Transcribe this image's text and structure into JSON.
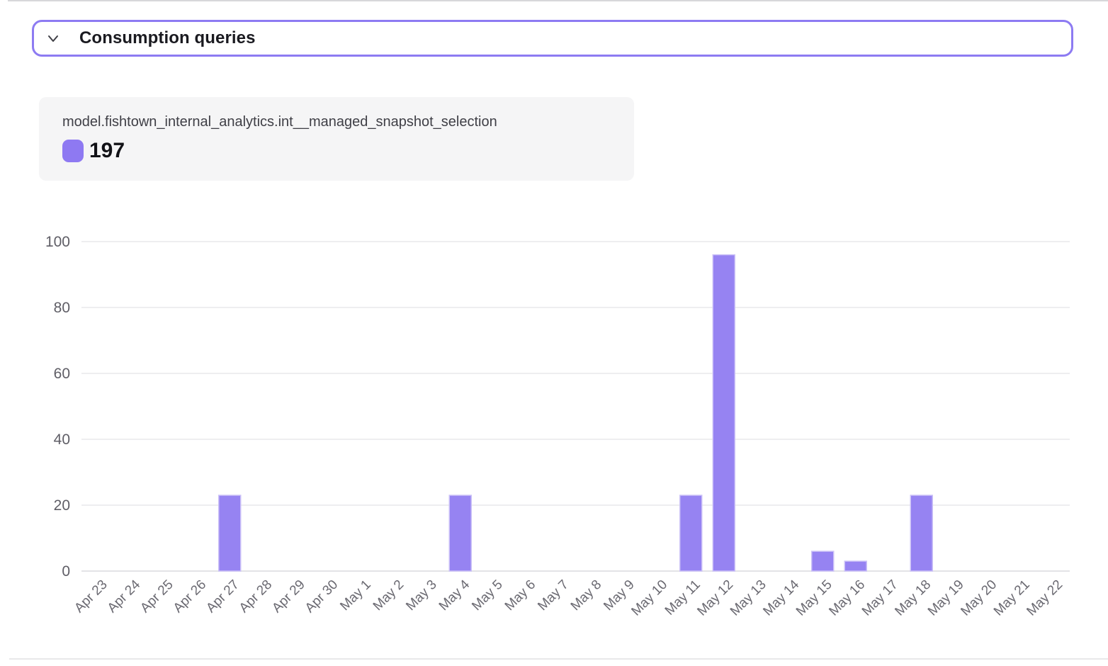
{
  "header": {
    "title": "Consumption queries",
    "collapse_icon": "chevron-down",
    "border_color": "#8d7bf2"
  },
  "tooltip": {
    "series_name": "model.fishtown_internal_analytics.int__managed_snapshot_selection",
    "value": "197",
    "swatch_color": "#8e79f2"
  },
  "chart_data": {
    "type": "bar",
    "title": "",
    "xlabel": "",
    "ylabel": "",
    "categories": [
      "Apr 23",
      "Apr 24",
      "Apr 25",
      "Apr 26",
      "Apr 27",
      "Apr 28",
      "Apr 29",
      "Apr 30",
      "May 1",
      "May 2",
      "May 3",
      "May 4",
      "May 5",
      "May 6",
      "May 7",
      "May 8",
      "May 9",
      "May 10",
      "May 11",
      "May 12",
      "May 13",
      "May 14",
      "May 15",
      "May 16",
      "May 17",
      "May 18",
      "May 19",
      "May 20",
      "May 21",
      "May 22"
    ],
    "values": [
      0,
      0,
      0,
      0,
      23,
      0,
      0,
      0,
      0,
      0,
      0,
      23,
      0,
      0,
      0,
      0,
      0,
      0,
      23,
      96,
      0,
      0,
      6,
      3,
      0,
      23,
      0,
      0,
      0,
      0
    ],
    "series_name": "model.fishtown_internal_analytics.int__managed_snapshot_selection",
    "total": 197,
    "ylim": [
      0,
      100
    ],
    "yticks": [
      0,
      20,
      40,
      60,
      80,
      100
    ],
    "grid": true,
    "legend_position": "top-left-card",
    "bar_color": "#9683f2",
    "bar_edge_color": "#cbc1f7",
    "gridline_color": "#e9e9ec",
    "axisline_color": "#e3e3e6",
    "xtick_rotation": -45
  }
}
